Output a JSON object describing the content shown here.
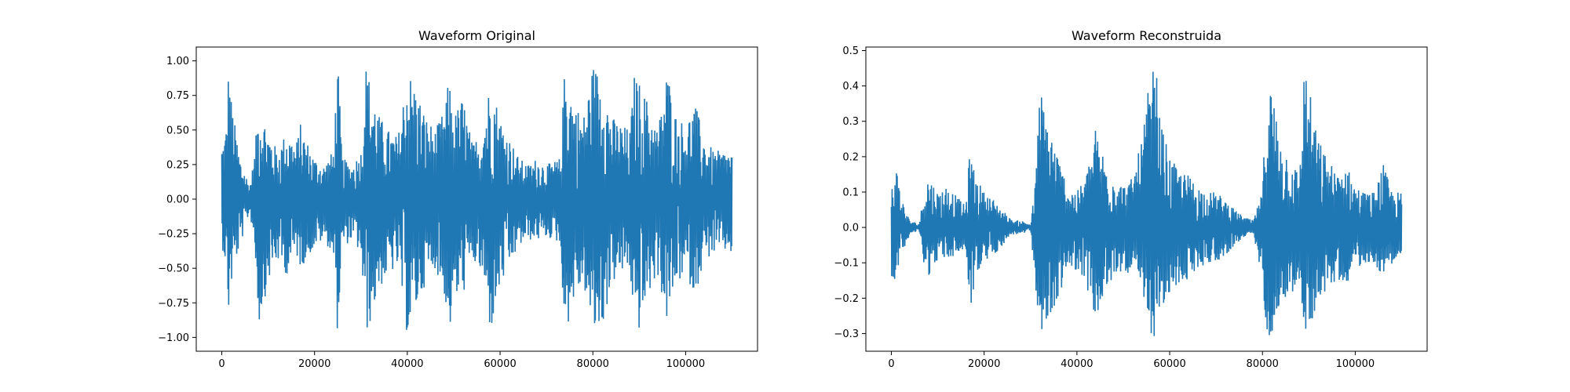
{
  "chart_data": [
    {
      "type": "line",
      "title": "Waveform Original",
      "xlabel": "",
      "ylabel": "",
      "xlim": [
        -5500,
        115500
      ],
      "ylim": [
        -1.1,
        1.1
      ],
      "x_ticks": [
        0,
        20000,
        40000,
        60000,
        80000,
        100000
      ],
      "x_tick_labels": [
        "0",
        "20000",
        "40000",
        "60000",
        "80000",
        "100000"
      ],
      "y_ticks": [
        -1.0,
        -0.75,
        -0.5,
        -0.25,
        0.0,
        0.25,
        0.5,
        0.75,
        1.0
      ],
      "y_tick_labels": [
        "−1.00",
        "−0.75",
        "−0.50",
        "−0.25",
        "0.00",
        "0.25",
        "0.50",
        "0.75",
        "1.00"
      ],
      "grid": false,
      "line_color": "#1f77b4",
      "series": [
        {
          "x": [
            0,
            500,
            1000,
            1500,
            2000,
            3000,
            4000,
            5000,
            6000,
            7000,
            8000,
            10000,
            12000,
            14000,
            16000,
            17000,
            18000,
            20000,
            22000,
            24000,
            25000,
            26000,
            28000,
            30000,
            31000,
            32000,
            34000,
            36000,
            38000,
            40000,
            42000,
            44000,
            46000,
            48000,
            49000,
            50000,
            52000,
            54000,
            56000,
            58000,
            60000,
            62000,
            64000,
            66000,
            68000,
            70000,
            72000,
            73000,
            74000,
            76000,
            78000,
            80000,
            82000,
            84000,
            86000,
            88000,
            89000,
            90000,
            92000,
            94000,
            96000,
            98000,
            100000,
            102000,
            104000,
            106000,
            108000,
            110000
          ],
          "envelope_max": [
            0.42,
            0.45,
            0.55,
            1.0,
            0.75,
            0.5,
            0.3,
            0.2,
            0.1,
            0.3,
            0.72,
            0.5,
            0.35,
            0.5,
            0.4,
            0.55,
            0.45,
            0.3,
            0.25,
            0.35,
            1.0,
            0.3,
            0.25,
            0.35,
            1.0,
            0.85,
            0.6,
            0.5,
            0.45,
            0.96,
            0.8,
            0.6,
            0.5,
            0.65,
            0.88,
            0.6,
            0.75,
            0.4,
            0.5,
            0.88,
            0.6,
            0.45,
            0.3,
            0.25,
            0.3,
            0.25,
            0.28,
            0.3,
            1.0,
            0.7,
            0.6,
            0.98,
            0.9,
            0.6,
            0.55,
            0.5,
            0.92,
            0.85,
            0.7,
            0.5,
            0.95,
            0.6,
            0.55,
            0.7,
            0.45,
            0.35,
            0.35,
            0.35
          ],
          "envelope_min": [
            -0.35,
            -0.4,
            -0.55,
            -0.85,
            -0.65,
            -0.45,
            -0.35,
            -0.2,
            -0.1,
            -0.3,
            -0.92,
            -0.6,
            -0.45,
            -0.55,
            -0.4,
            -0.5,
            -0.45,
            -0.35,
            -0.3,
            -0.4,
            -1.0,
            -0.35,
            -0.3,
            -0.4,
            -1.0,
            -0.9,
            -0.65,
            -0.55,
            -0.5,
            -1.0,
            -0.8,
            -0.6,
            -0.5,
            -0.7,
            -1.0,
            -0.75,
            -0.7,
            -0.45,
            -0.55,
            -0.98,
            -0.65,
            -0.5,
            -0.35,
            -0.3,
            -0.3,
            -0.28,
            -0.3,
            -0.35,
            -1.0,
            -0.72,
            -0.62,
            -1.0,
            -0.95,
            -0.62,
            -0.55,
            -0.52,
            -1.0,
            -0.95,
            -0.7,
            -0.55,
            -0.9,
            -0.62,
            -0.55,
            -0.7,
            -0.45,
            -0.4,
            -0.38,
            -0.4
          ]
        }
      ]
    },
    {
      "type": "line",
      "title": "Waveform Reconstruida",
      "xlabel": "",
      "ylabel": "",
      "xlim": [
        -5500,
        115500
      ],
      "ylim": [
        -0.35,
        0.51
      ],
      "x_ticks": [
        0,
        20000,
        40000,
        60000,
        80000,
        100000
      ],
      "x_tick_labels": [
        "0",
        "20000",
        "40000",
        "60000",
        "80000",
        "100000"
      ],
      "y_ticks": [
        -0.3,
        -0.2,
        -0.1,
        0.0,
        0.1,
        0.2,
        0.3,
        0.4,
        0.5
      ],
      "y_tick_labels": [
        "−0.3",
        "−0.2",
        "−0.1",
        "0.0",
        "0.1",
        "0.2",
        "0.3",
        "0.4",
        "0.5"
      ],
      "grid": false,
      "line_color": "#1f77b4",
      "series": [
        {
          "x": [
            0,
            1000,
            2000,
            3000,
            4000,
            6000,
            7000,
            8000,
            10000,
            12000,
            14000,
            16000,
            17000,
            18000,
            20000,
            22000,
            24000,
            26000,
            28000,
            30000,
            31000,
            32000,
            34000,
            36000,
            38000,
            40000,
            42000,
            44000,
            46000,
            48000,
            50000,
            52000,
            54000,
            56000,
            57000,
            58000,
            60000,
            62000,
            64000,
            66000,
            68000,
            70000,
            72000,
            74000,
            76000,
            78000,
            80000,
            81000,
            82000,
            84000,
            86000,
            88000,
            89000,
            90000,
            92000,
            94000,
            96000,
            98000,
            100000,
            102000,
            104000,
            106000,
            108000,
            110000
          ],
          "envelope_max": [
            0.12,
            0.18,
            0.1,
            0.05,
            0.02,
            0.01,
            0.1,
            0.15,
            0.1,
            0.12,
            0.09,
            0.06,
            0.23,
            0.15,
            0.1,
            0.08,
            0.05,
            0.02,
            0.02,
            0.01,
            0.12,
            0.4,
            0.3,
            0.2,
            0.12,
            0.1,
            0.15,
            0.28,
            0.2,
            0.15,
            0.12,
            0.14,
            0.25,
            0.45,
            0.46,
            0.3,
            0.2,
            0.16,
            0.15,
            0.12,
            0.1,
            0.1,
            0.08,
            0.05,
            0.03,
            0.02,
            0.1,
            0.45,
            0.4,
            0.25,
            0.2,
            0.15,
            0.47,
            0.4,
            0.25,
            0.2,
            0.15,
            0.18,
            0.12,
            0.1,
            0.1,
            0.18,
            0.1,
            0.1
          ],
          "envelope_min": [
            -0.16,
            -0.14,
            -0.08,
            -0.05,
            -0.02,
            -0.01,
            -0.1,
            -0.14,
            -0.09,
            -0.09,
            -0.08,
            -0.06,
            -0.24,
            -0.15,
            -0.1,
            -0.08,
            -0.05,
            -0.02,
            -0.02,
            -0.01,
            -0.15,
            -0.31,
            -0.28,
            -0.2,
            -0.12,
            -0.12,
            -0.16,
            -0.27,
            -0.2,
            -0.14,
            -0.12,
            -0.14,
            -0.2,
            -0.31,
            -0.31,
            -0.25,
            -0.2,
            -0.16,
            -0.15,
            -0.12,
            -0.1,
            -0.1,
            -0.08,
            -0.05,
            -0.03,
            -0.02,
            -0.15,
            -0.31,
            -0.3,
            -0.2,
            -0.2,
            -0.15,
            -0.31,
            -0.3,
            -0.2,
            -0.18,
            -0.15,
            -0.16,
            -0.12,
            -0.1,
            -0.1,
            -0.14,
            -0.1,
            -0.09
          ]
        }
      ]
    }
  ]
}
